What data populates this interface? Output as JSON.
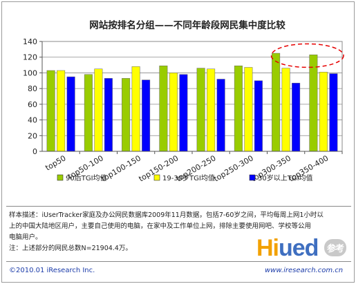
{
  "chart_data": {
    "type": "bar",
    "title": "网站按排名分组——不同年龄段网民集中度比较",
    "categories": [
      "top50",
      "top50-100",
      "top100-150",
      "top150-200",
      "top200-250",
      "top250-300",
      "top300-350",
      "top350-400"
    ],
    "series": [
      {
        "name": "90后TGI均值",
        "color": "#99cc00",
        "values": [
          103,
          98,
          93,
          109,
          106,
          109,
          125,
          123
        ]
      },
      {
        "name": "19-30岁TGI均值",
        "color": "#ffff00",
        "values": [
          103,
          105,
          108,
          100,
          105,
          107,
          106,
          101
        ]
      },
      {
        "name": "30岁以上TGI均值",
        "color": "#0000ff",
        "values": [
          95,
          93,
          91,
          98,
          92,
          90,
          87,
          99
        ]
      }
    ],
    "ylim": [
      0,
      140
    ],
    "yticks": [
      "0",
      "20",
      "40",
      "60",
      "80",
      "100",
      "120",
      "140"
    ],
    "grid": true,
    "legend": "bottom",
    "highlight_categories": [
      "top300-350",
      "top350-400"
    ]
  },
  "notes": {
    "line1": "样本描述：iUserTracker家庭及办公网民数据库2009年11月数据，包括7-60岁之间，平均每周上网1小时以",
    "line2": "上的中国大陆地区用户，主要自己使用的电脑，在家中及工作单位上网，排除主要使用网吧、学校等公用",
    "line3": "电脑用户。",
    "line4": "注：上述部分的网民总数N=21904.4万。"
  },
  "footer": {
    "copyright": "©2010.01 iResearch Inc.",
    "url": "www.iresearch.com.cn"
  },
  "logo": {
    "text_a": "Hi",
    "text_b": "ued",
    "text_cn": "参考"
  }
}
